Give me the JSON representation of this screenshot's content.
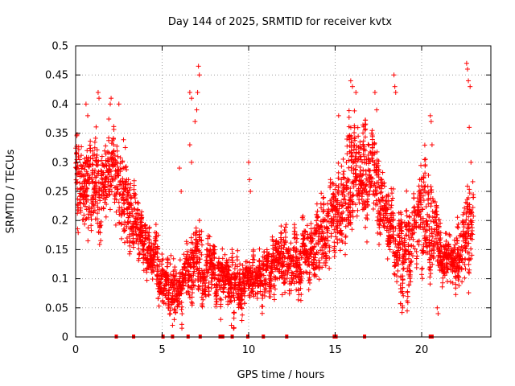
{
  "chart_data": {
    "type": "scatter",
    "title": "Day 144 of 2025, SRMTID for receiver kvtx",
    "xlabel": "GPS time / hours",
    "ylabel": "SRMTID / TECUs",
    "xlim": [
      0,
      24
    ],
    "ylim": [
      0,
      0.5
    ],
    "xticks": [
      0,
      5,
      10,
      15,
      20
    ],
    "xtick_labels": [
      "0",
      "5",
      "10",
      "15",
      "20"
    ],
    "yticks": [
      0,
      0.05,
      0.1,
      0.15,
      0.2,
      0.25,
      0.3,
      0.35,
      0.4,
      0.45,
      0.5
    ],
    "ytick_labels": [
      "0",
      "0.05",
      "0.1",
      "0.15",
      "0.2",
      "0.25",
      "0.3",
      "0.35",
      "0.4",
      "0.45",
      "0.5"
    ],
    "grid": true,
    "marker": "+",
    "color": "#ff0000",
    "profile": {
      "description": "approximate median SRMTID (TECU) versus GPS hour, sampled across the day",
      "x": [
        0,
        0.5,
        1,
        1.5,
        2,
        2.5,
        3,
        3.5,
        4,
        4.5,
        5,
        5.5,
        6,
        6.5,
        7,
        7.5,
        8,
        8.5,
        9,
        9.5,
        10,
        10.5,
        11,
        11.5,
        12,
        12.5,
        13,
        13.5,
        14,
        14.5,
        15,
        15.5,
        16,
        16.5,
        17,
        17.5,
        18,
        18.5,
        19,
        19.5,
        20,
        20.5,
        21,
        21.5,
        22,
        22.5,
        23
      ],
      "y": [
        0.25,
        0.27,
        0.26,
        0.27,
        0.28,
        0.26,
        0.24,
        0.2,
        0.16,
        0.13,
        0.1,
        0.08,
        0.09,
        0.11,
        0.13,
        0.12,
        0.11,
        0.1,
        0.09,
        0.09,
        0.1,
        0.11,
        0.11,
        0.12,
        0.13,
        0.13,
        0.14,
        0.15,
        0.17,
        0.19,
        0.21,
        0.24,
        0.27,
        0.3,
        0.28,
        0.24,
        0.19,
        0.15,
        0.14,
        0.18,
        0.22,
        0.2,
        0.15,
        0.13,
        0.14,
        0.16,
        0.2
      ]
    },
    "spread": {
      "description": "approximate vertical spread (TECU) of the point cloud around the median",
      "y": [
        0.06,
        0.07,
        0.07,
        0.08,
        0.07,
        0.06,
        0.06,
        0.05,
        0.04,
        0.04,
        0.04,
        0.04,
        0.04,
        0.05,
        0.05,
        0.04,
        0.04,
        0.04,
        0.04,
        0.04,
        0.04,
        0.04,
        0.04,
        0.04,
        0.04,
        0.04,
        0.05,
        0.05,
        0.05,
        0.06,
        0.06,
        0.07,
        0.07,
        0.07,
        0.07,
        0.07,
        0.06,
        0.06,
        0.06,
        0.06,
        0.06,
        0.06,
        0.05,
        0.04,
        0.05,
        0.06,
        0.06
      ]
    },
    "outliers": [
      {
        "x": 0.6,
        "y": 0.4
      },
      {
        "x": 0.7,
        "y": 0.38
      },
      {
        "x": 1.3,
        "y": 0.42
      },
      {
        "x": 1.35,
        "y": 0.41
      },
      {
        "x": 2.0,
        "y": 0.4
      },
      {
        "x": 2.05,
        "y": 0.41
      },
      {
        "x": 2.5,
        "y": 0.4
      },
      {
        "x": 6.0,
        "y": 0.29
      },
      {
        "x": 6.1,
        "y": 0.25
      },
      {
        "x": 6.6,
        "y": 0.42
      },
      {
        "x": 6.7,
        "y": 0.41
      },
      {
        "x": 6.6,
        "y": 0.33
      },
      {
        "x": 6.7,
        "y": 0.3
      },
      {
        "x": 6.9,
        "y": 0.37
      },
      {
        "x": 7.1,
        "y": 0.465
      },
      {
        "x": 7.15,
        "y": 0.45
      },
      {
        "x": 7.05,
        "y": 0.42
      },
      {
        "x": 7.0,
        "y": 0.39
      },
      {
        "x": 10.0,
        "y": 0.3
      },
      {
        "x": 10.05,
        "y": 0.27
      },
      {
        "x": 10.1,
        "y": 0.25
      },
      {
        "x": 15.2,
        "y": 0.38
      },
      {
        "x": 15.9,
        "y": 0.44
      },
      {
        "x": 16.0,
        "y": 0.43
      },
      {
        "x": 16.2,
        "y": 0.42
      },
      {
        "x": 17.3,
        "y": 0.42
      },
      {
        "x": 17.4,
        "y": 0.39
      },
      {
        "x": 18.4,
        "y": 0.45
      },
      {
        "x": 18.45,
        "y": 0.43
      },
      {
        "x": 18.5,
        "y": 0.42
      },
      {
        "x": 20.5,
        "y": 0.38
      },
      {
        "x": 20.55,
        "y": 0.37
      },
      {
        "x": 20.6,
        "y": 0.33
      },
      {
        "x": 22.6,
        "y": 0.47
      },
      {
        "x": 22.65,
        "y": 0.46
      },
      {
        "x": 22.7,
        "y": 0.44
      },
      {
        "x": 22.8,
        "y": 0.43
      },
      {
        "x": 22.75,
        "y": 0.36
      },
      {
        "x": 22.85,
        "y": 0.3
      },
      {
        "x": 5.6,
        "y": 0.02
      },
      {
        "x": 5.7,
        "y": 0.03
      },
      {
        "x": 9.0,
        "y": 0.02
      },
      {
        "x": 18.9,
        "y": 0.05
      },
      {
        "x": 20.9,
        "y": 0.05
      },
      {
        "x": 20.95,
        "y": 0.04
      }
    ],
    "zero_markers_x": [
      2.35,
      3.35,
      5.05,
      5.6,
      6.5,
      7.2,
      8.35,
      8.5,
      9.05,
      9.95,
      10.85,
      12.2,
      14.95,
      15.05,
      16.7,
      20.5,
      20.6
    ]
  }
}
